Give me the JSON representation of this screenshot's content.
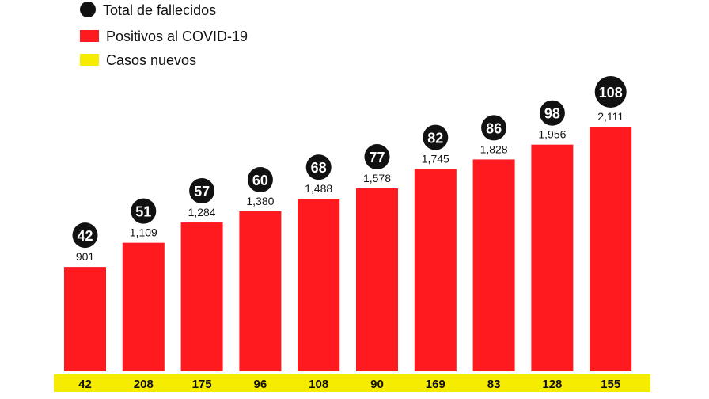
{
  "chart_data": {
    "type": "bar",
    "title": "",
    "xlabel": "",
    "ylabel": "",
    "legend": [
      {
        "label": "Total de fallecidos",
        "shape": "circle",
        "color": "#111111"
      },
      {
        "label": "Positivos al COVID-19",
        "shape": "square",
        "color": "#ff1a1f"
      },
      {
        "label": "Casos nuevos",
        "shape": "square",
        "color": "#f5ec00"
      }
    ],
    "legend_position": "top-left",
    "ylim": [
      0,
      2111
    ],
    "series": [
      {
        "name": "Positivos al COVID-19",
        "labels": [
          "901",
          "1,109",
          "1,284",
          "1,380",
          "1,488",
          "1,578",
          "1,745",
          "1,828",
          "1,956",
          "2,111"
        ],
        "values": [
          901,
          1109,
          1284,
          1380,
          1488,
          1578,
          1745,
          1828,
          1956,
          2111
        ]
      },
      {
        "name": "Total de fallecidos",
        "values": [
          42,
          51,
          57,
          60,
          68,
          77,
          82,
          86,
          98,
          108
        ]
      },
      {
        "name": "Casos nuevos",
        "values": [
          42,
          208,
          175,
          96,
          108,
          90,
          169,
          83,
          128,
          155
        ]
      }
    ],
    "colors": {
      "bar": "#ff1a1f",
      "band": "#f5ec00",
      "circle": "#111111"
    }
  }
}
